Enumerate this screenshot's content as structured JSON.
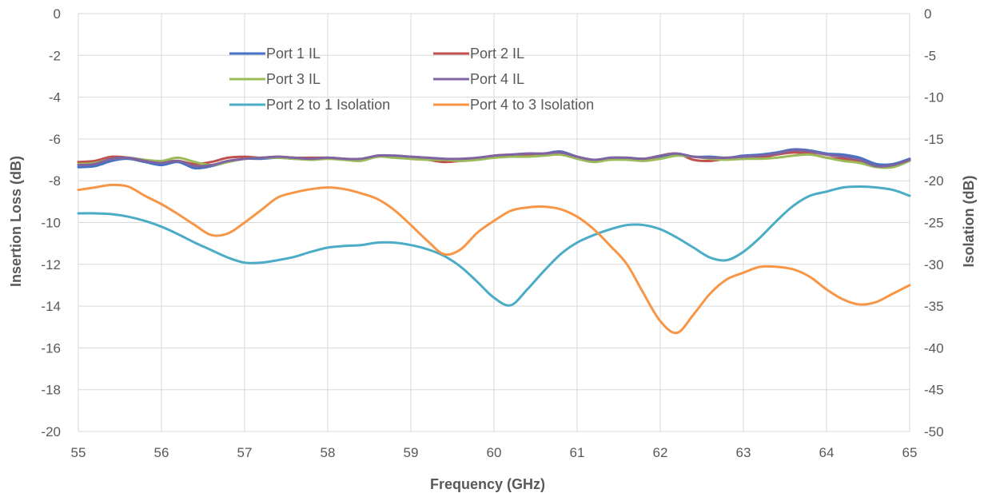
{
  "chart_data": {
    "type": "line",
    "title": "",
    "xlabel": "Frequency (GHz)",
    "ylabel": "Insertion Loss  (dB)",
    "y2label": "Isolation (dB)",
    "xlim": [
      55,
      65
    ],
    "ylim": [
      -20,
      0
    ],
    "y2lim": [
      -50,
      0
    ],
    "grid": true,
    "legend_position": "top",
    "x_ticks": [
      "55",
      "56",
      "57",
      "58",
      "59",
      "60",
      "61",
      "62",
      "63",
      "64",
      "65"
    ],
    "y_ticks": [
      "0",
      "-2",
      "-4",
      "-6",
      "-8",
      "-10",
      "-12",
      "-14",
      "-16",
      "-18",
      "-20"
    ],
    "y2_ticks": [
      "0",
      "-5",
      "-10",
      "-15",
      "-20",
      "-25",
      "-30",
      "-35",
      "-40",
      "-45",
      "-50"
    ],
    "x": [
      55,
      55.2,
      55.4,
      55.6,
      55.8,
      56,
      56.2,
      56.4,
      56.6,
      56.8,
      57,
      57.2,
      57.4,
      57.6,
      57.8,
      58,
      58.2,
      58.4,
      58.6,
      58.8,
      59,
      59.2,
      59.4,
      59.6,
      59.8,
      60,
      60.2,
      60.4,
      60.6,
      60.8,
      61,
      61.2,
      61.4,
      61.6,
      61.8,
      62,
      62.2,
      62.4,
      62.6,
      62.8,
      63,
      63.2,
      63.4,
      63.6,
      63.8,
      64,
      64.2,
      64.4,
      64.6,
      64.8,
      65
    ],
    "series": [
      {
        "name": "Port 1 IL",
        "axis": "left",
        "color": "#4472C4",
        "values": [
          -7.35,
          -7.3,
          -7.05,
          -6.95,
          -7.1,
          -7.25,
          -7.1,
          -7.4,
          -7.3,
          -7.1,
          -6.95,
          -6.95,
          -6.9,
          -6.95,
          -6.95,
          -6.9,
          -6.95,
          -7.0,
          -6.8,
          -6.8,
          -6.85,
          -6.9,
          -6.95,
          -7.0,
          -6.95,
          -6.85,
          -6.75,
          -6.7,
          -6.7,
          -6.6,
          -6.85,
          -7.0,
          -6.9,
          -6.9,
          -6.95,
          -6.85,
          -6.7,
          -6.85,
          -6.85,
          -6.9,
          -6.8,
          -6.75,
          -6.65,
          -6.5,
          -6.55,
          -6.7,
          -6.75,
          -6.9,
          -7.2,
          -7.2,
          -6.95
        ]
      },
      {
        "name": "Port 2 IL",
        "axis": "left",
        "color": "#C0504D",
        "values": [
          -7.1,
          -7.05,
          -6.85,
          -6.9,
          -7.05,
          -7.1,
          -7.05,
          -7.2,
          -7.1,
          -6.9,
          -6.85,
          -6.9,
          -6.85,
          -6.9,
          -6.9,
          -6.9,
          -6.95,
          -7.0,
          -6.85,
          -6.85,
          -6.95,
          -7.0,
          -7.1,
          -7.05,
          -6.95,
          -6.8,
          -6.75,
          -6.75,
          -6.7,
          -6.7,
          -6.9,
          -7.05,
          -6.9,
          -6.95,
          -7.0,
          -6.8,
          -6.7,
          -7.0,
          -7.05,
          -6.95,
          -6.95,
          -6.9,
          -6.75,
          -6.65,
          -6.7,
          -6.9,
          -6.95,
          -7.1,
          -7.3,
          -7.3,
          -7.0
        ]
      },
      {
        "name": "Port 3 IL",
        "axis": "left",
        "color": "#9BBB59",
        "values": [
          -7.2,
          -7.15,
          -6.95,
          -6.9,
          -7.0,
          -7.05,
          -6.9,
          -7.1,
          -7.25,
          -7.1,
          -6.95,
          -6.9,
          -6.9,
          -6.95,
          -7.0,
          -6.95,
          -7.0,
          -7.05,
          -6.85,
          -6.9,
          -6.95,
          -7.0,
          -7.0,
          -7.05,
          -7.0,
          -6.9,
          -6.85,
          -6.85,
          -6.8,
          -6.75,
          -6.95,
          -7.1,
          -7.0,
          -7.0,
          -7.05,
          -6.95,
          -6.8,
          -6.85,
          -6.95,
          -7.0,
          -6.95,
          -6.95,
          -6.9,
          -6.8,
          -6.75,
          -6.9,
          -7.05,
          -7.15,
          -7.35,
          -7.35,
          -7.05
        ]
      },
      {
        "name": "Port 4 IL",
        "axis": "left",
        "color": "#8064A2",
        "values": [
          -7.25,
          -7.2,
          -6.95,
          -6.9,
          -7.05,
          -7.15,
          -7.05,
          -7.3,
          -7.25,
          -7.05,
          -6.95,
          -6.9,
          -6.85,
          -6.9,
          -6.95,
          -6.9,
          -6.95,
          -6.95,
          -6.8,
          -6.8,
          -6.85,
          -6.9,
          -6.95,
          -6.95,
          -6.9,
          -6.8,
          -6.75,
          -6.7,
          -6.7,
          -6.65,
          -6.85,
          -7.0,
          -6.9,
          -6.9,
          -6.95,
          -6.8,
          -6.7,
          -6.85,
          -6.9,
          -6.9,
          -6.85,
          -6.8,
          -6.7,
          -6.55,
          -6.6,
          -6.75,
          -6.85,
          -7.0,
          -7.3,
          -7.25,
          -7.0
        ]
      },
      {
        "name": "Port 2 to 1 Isolation",
        "axis": "right",
        "color": "#4BACC6",
        "values": [
          -23.9,
          -23.9,
          -24.0,
          -24.3,
          -24.8,
          -25.5,
          -26.4,
          -27.4,
          -28.3,
          -29.2,
          -29.8,
          -29.8,
          -29.5,
          -29.1,
          -28.5,
          -28.0,
          -27.8,
          -27.7,
          -27.4,
          -27.4,
          -27.7,
          -28.2,
          -29.0,
          -30.3,
          -32.1,
          -34.0,
          -34.9,
          -33.0,
          -30.8,
          -28.8,
          -27.4,
          -26.5,
          -25.8,
          -25.3,
          -25.3,
          -25.8,
          -26.8,
          -28.0,
          -29.2,
          -29.5,
          -28.5,
          -26.8,
          -24.8,
          -23.0,
          -21.8,
          -21.3,
          -20.8,
          -20.7,
          -20.8,
          -21.1,
          -21.8
        ]
      },
      {
        "name": "Port 4 to 3 Isolation",
        "axis": "right",
        "color": "#F79646",
        "values": [
          -21.1,
          -20.8,
          -20.5,
          -20.7,
          -21.8,
          -22.8,
          -24.0,
          -25.3,
          -26.5,
          -26.3,
          -25.0,
          -23.5,
          -22.0,
          -21.4,
          -21.0,
          -20.8,
          -21.0,
          -21.5,
          -22.2,
          -23.5,
          -25.3,
          -27.2,
          -28.8,
          -28.2,
          -26.2,
          -24.8,
          -23.6,
          -23.2,
          -23.1,
          -23.4,
          -24.3,
          -25.8,
          -27.8,
          -30.0,
          -33.5,
          -36.8,
          -38.2,
          -36.0,
          -33.5,
          -31.8,
          -31.0,
          -30.3,
          -30.3,
          -30.6,
          -31.5,
          -33.0,
          -34.2,
          -34.8,
          -34.5,
          -33.5,
          -32.5
        ]
      }
    ]
  }
}
